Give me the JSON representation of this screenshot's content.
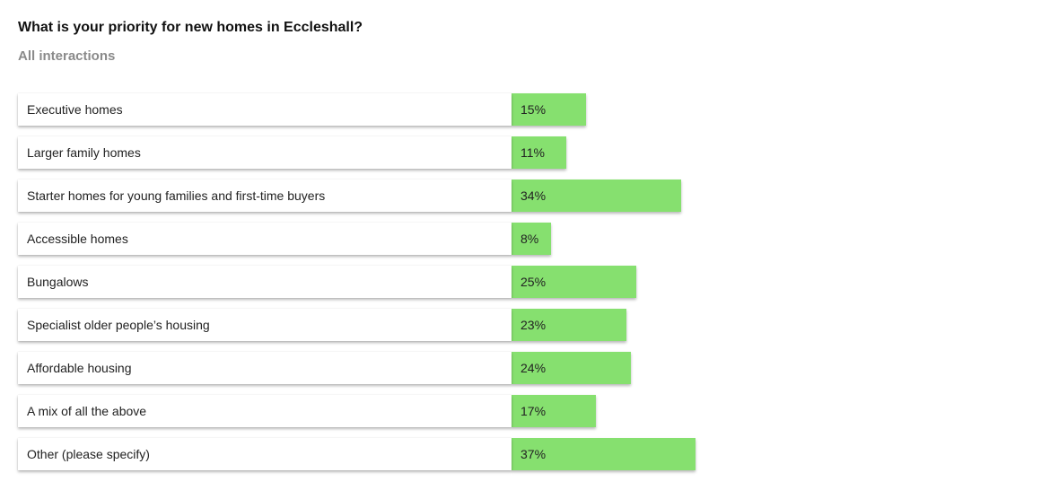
{
  "header": {
    "title": "What is your priority for new homes in Eccleshall?",
    "subtitle": "All interactions"
  },
  "colors": {
    "bar": "#86e06f"
  },
  "chart_data": {
    "type": "bar",
    "orientation": "horizontal",
    "title": "What is your priority for new homes in Eccleshall?",
    "subtitle": "All interactions",
    "xlim": [
      0,
      100
    ],
    "categories": [
      "Executive homes",
      "Larger family homes",
      "Starter homes for young families and first-time buyers",
      "Accessible homes",
      "Bungalows",
      "Specialist older people’s housing",
      "Affordable housing",
      "A mix of all the above",
      "Other (please specify)"
    ],
    "values": [
      15,
      11,
      34,
      8,
      25,
      23,
      24,
      17,
      37
    ],
    "value_labels": [
      "15%",
      "11%",
      "34%",
      "8%",
      "25%",
      "23%",
      "24%",
      "17%",
      "37%"
    ],
    "grid": false,
    "legend": "none"
  }
}
